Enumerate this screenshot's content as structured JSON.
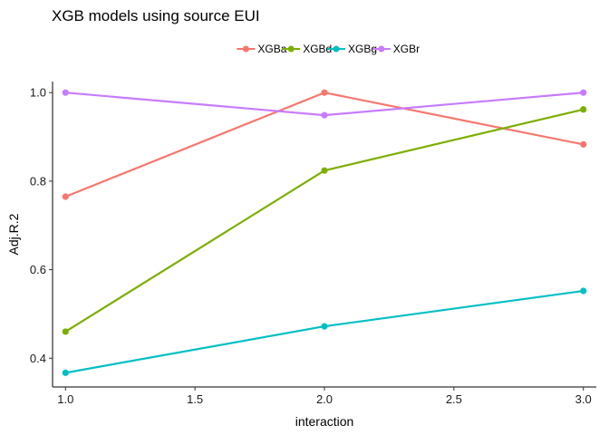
{
  "chart_data": {
    "type": "line",
    "title": "XGB models using source EUI",
    "xlabel": "interaction",
    "ylabel": "Adj.R.2",
    "x": [
      1.0,
      2.0,
      3.0
    ],
    "xlim": [
      0.95,
      3.05
    ],
    "ylim": [
      0.335,
      1.025
    ],
    "xticks": [
      1.0,
      1.5,
      2.0,
      2.5,
      3.0
    ],
    "xtick_labels": [
      "1.0",
      "1.5",
      "2.0",
      "2.5",
      "3.0"
    ],
    "yticks": [
      0.4,
      0.6,
      0.8,
      1.0
    ],
    "ytick_labels": [
      "0.4",
      "0.6",
      "0.8",
      "1.0"
    ],
    "grid": false,
    "legend_position": "top",
    "series": [
      {
        "name": "XGBa",
        "color": "#F8766D",
        "values": [
          0.765,
          1.0,
          0.883
        ]
      },
      {
        "name": "XGBd",
        "color": "#7CAE00",
        "values": [
          0.46,
          0.824,
          0.962
        ]
      },
      {
        "name": "XGBg",
        "color": "#00BFC4",
        "values": [
          0.367,
          0.472,
          0.552
        ]
      },
      {
        "name": "XGBr",
        "color": "#C77CFF",
        "values": [
          1.0,
          0.949,
          1.0
        ]
      }
    ]
  }
}
